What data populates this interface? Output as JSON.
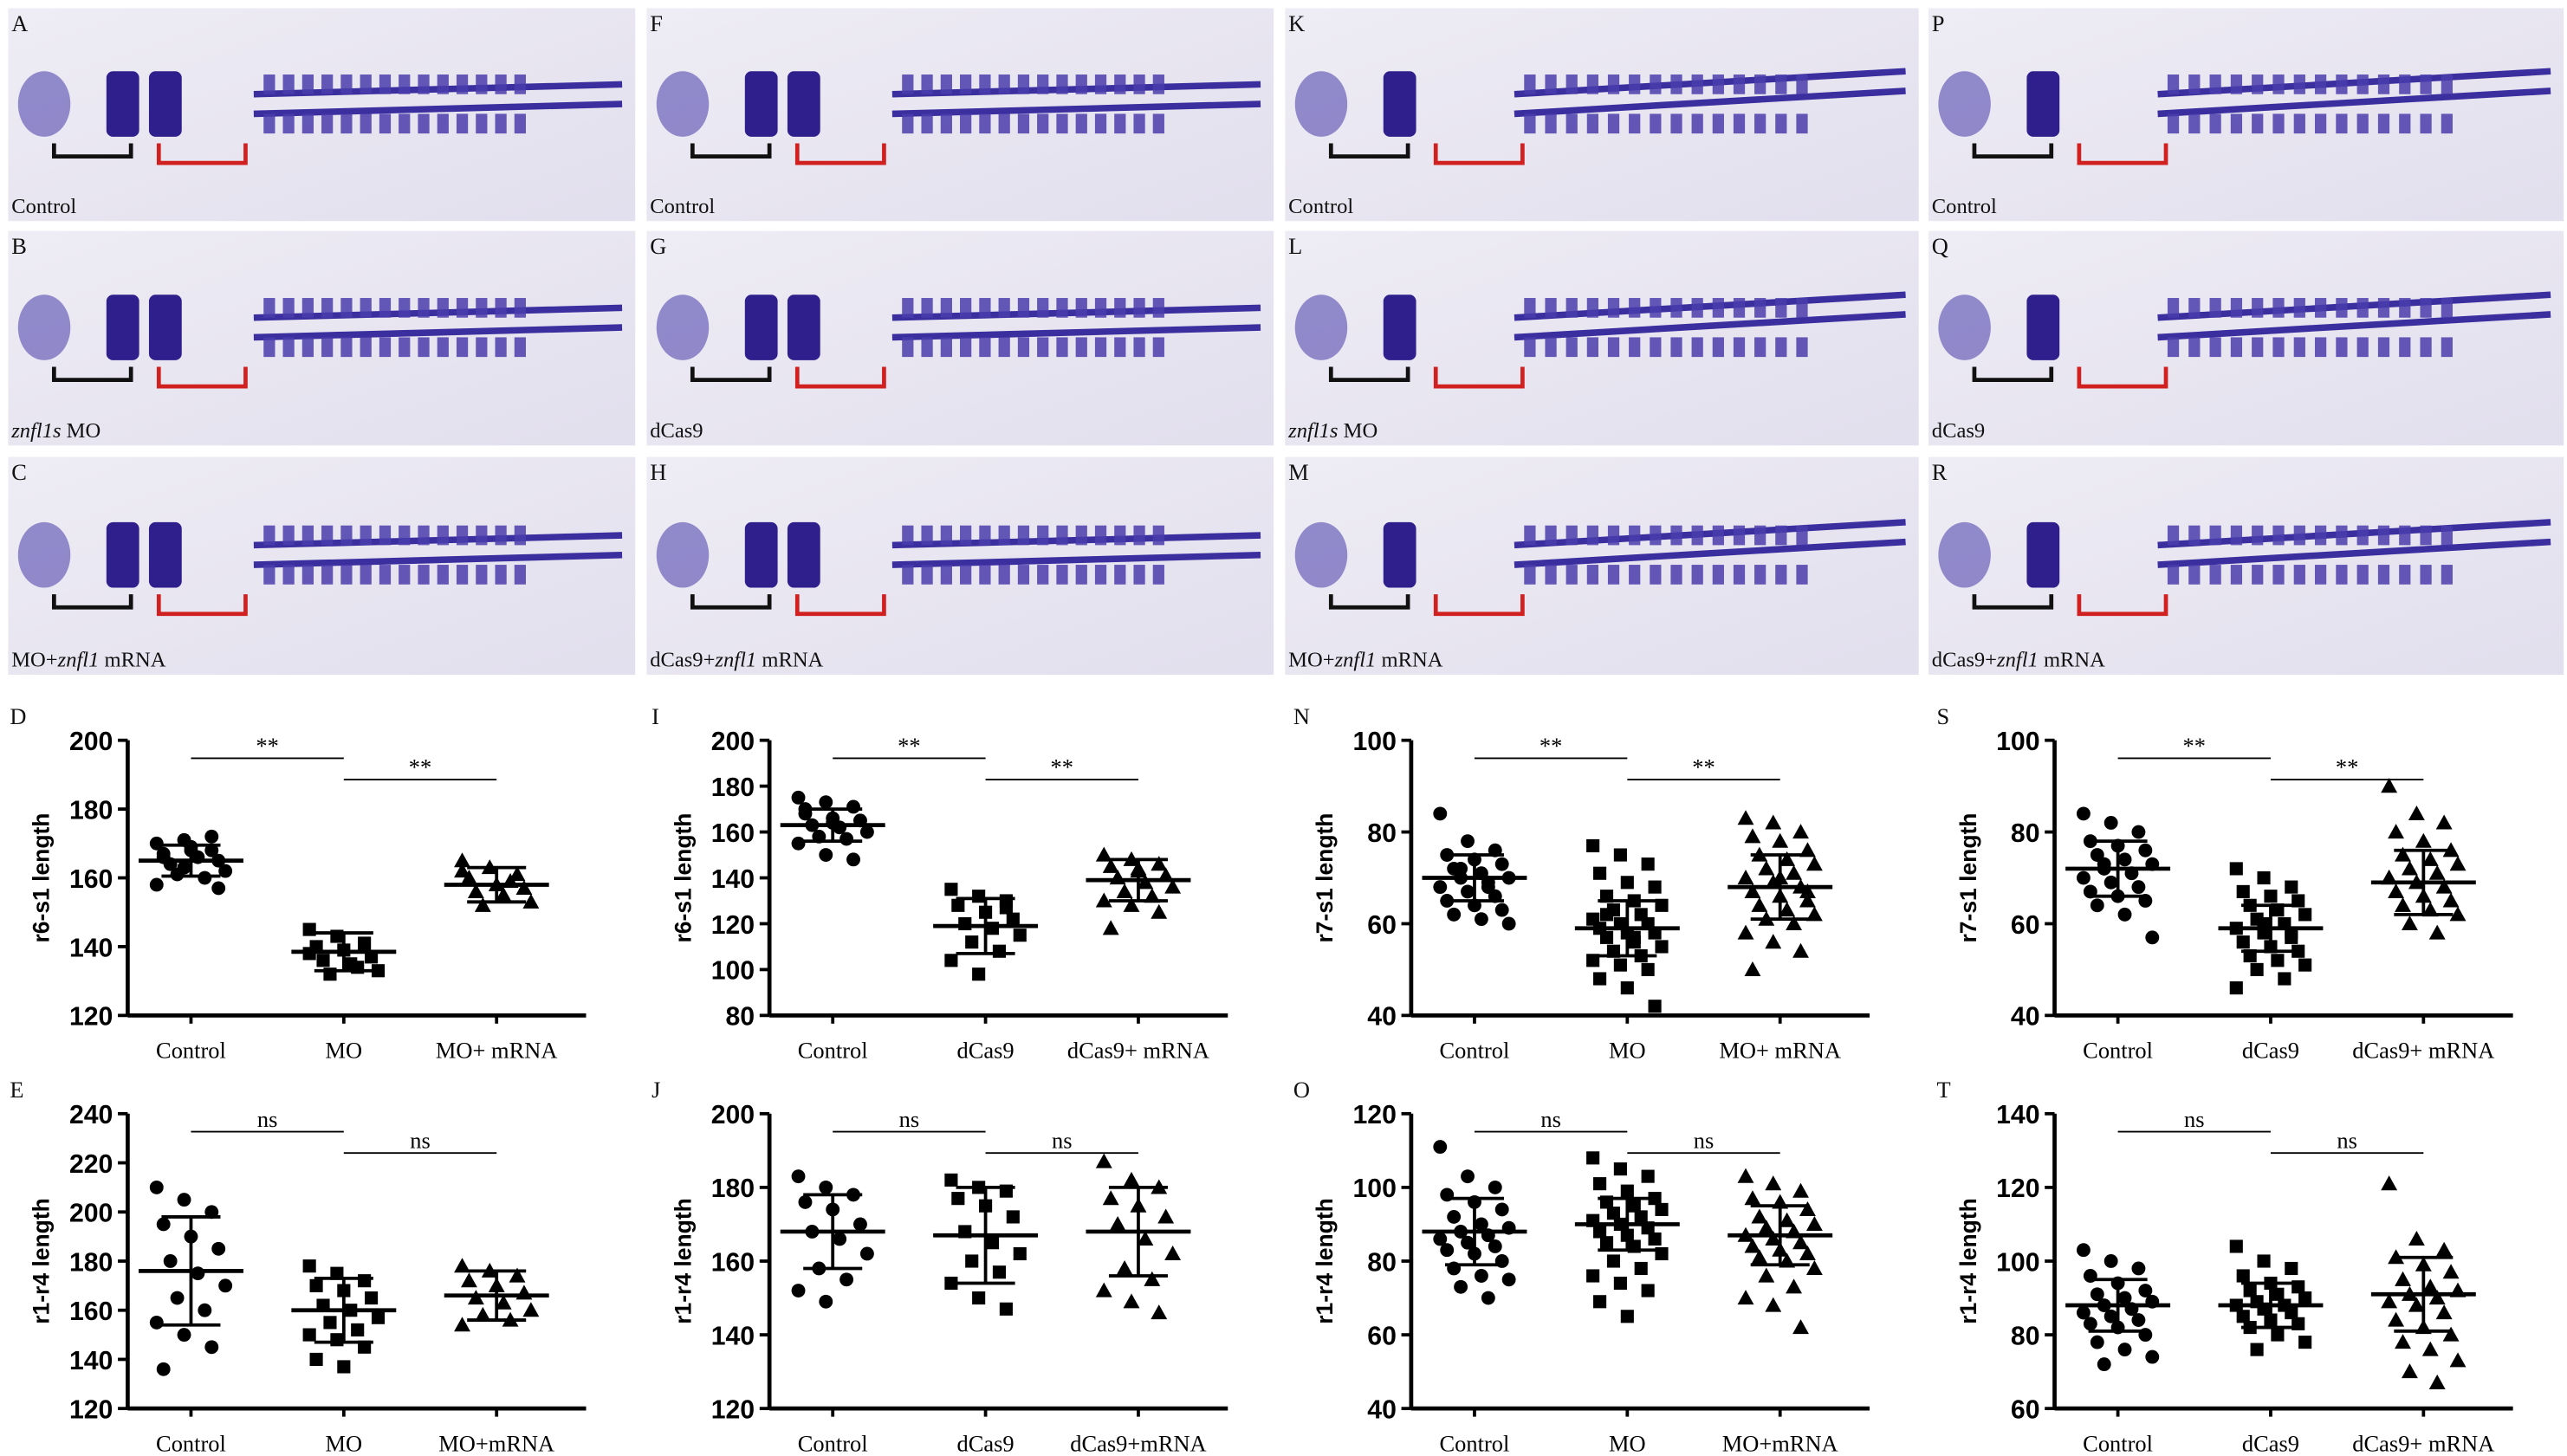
{
  "image_panels": [
    {
      "letter": "A",
      "caption": [
        {
          "text": "Control",
          "italic": false
        }
      ]
    },
    {
      "letter": "B",
      "caption": [
        {
          "text": "znfl1s",
          "italic": true
        },
        {
          "text": " MO",
          "italic": false
        }
      ]
    },
    {
      "letter": "C",
      "caption": [
        {
          "text": "MO+",
          "italic": false
        },
        {
          "text": "znfl1",
          "italic": true
        },
        {
          "text": " mRNA",
          "italic": false
        }
      ]
    },
    {
      "letter": "F",
      "caption": [
        {
          "text": "Control",
          "italic": false
        }
      ]
    },
    {
      "letter": "G",
      "caption": [
        {
          "text": "dCas9",
          "italic": false
        }
      ]
    },
    {
      "letter": "H",
      "caption": [
        {
          "text": "dCas9+",
          "italic": false
        },
        {
          "text": "znfl1",
          "italic": true
        },
        {
          "text": " mRNA",
          "italic": false
        }
      ]
    },
    {
      "letter": "K",
      "caption": [
        {
          "text": "Control",
          "italic": false
        }
      ]
    },
    {
      "letter": "L",
      "caption": [
        {
          "text": "znfl1s",
          "italic": true
        },
        {
          "text": " MO",
          "italic": false
        }
      ]
    },
    {
      "letter": "M",
      "caption": [
        {
          "text": "MO+",
          "italic": false
        },
        {
          "text": "znfl1",
          "italic": true
        },
        {
          "text": " mRNA",
          "italic": false
        }
      ]
    },
    {
      "letter": "P",
      "caption": [
        {
          "text": "Control",
          "italic": false
        }
      ]
    },
    {
      "letter": "Q",
      "caption": [
        {
          "text": "dCas9",
          "italic": false
        }
      ]
    },
    {
      "letter": "R",
      "caption": [
        {
          "text": "dCas9+",
          "italic": false
        },
        {
          "text": "znfl1",
          "italic": true
        },
        {
          "text": " mRNA",
          "italic": false
        }
      ]
    }
  ],
  "chart_data": [
    {
      "type": "dot",
      "letter": "D",
      "y_label": "r6-s1 length",
      "categories": [
        "Control",
        "MO",
        "MO+ mRNA"
      ],
      "markers": [
        "circle",
        "square",
        "triangle"
      ],
      "color": "#000000",
      "ylim": [
        120,
        200
      ],
      "yticks": [
        120,
        140,
        160,
        180,
        200
      ],
      "means": [
        165,
        138.5,
        158
      ],
      "sd": [
        4.5,
        5.5,
        5
      ],
      "significance": [
        "**",
        "**"
      ],
      "points": [
        [
          170,
          171,
          168,
          167,
          169,
          165,
          164,
          166,
          162,
          161,
          160,
          158,
          163,
          172,
          166,
          168,
          157
        ],
        [
          145,
          143,
          141,
          140,
          139,
          137,
          136,
          135,
          133,
          132,
          134,
          138
        ],
        [
          165,
          163,
          161,
          160,
          158,
          157,
          156,
          155,
          153,
          152,
          159,
          162
        ]
      ]
    },
    {
      "type": "dot",
      "letter": "I",
      "y_label": "r6-s1 length",
      "categories": [
        "Control",
        "dCas9",
        "dCas9+ mRNA"
      ],
      "markers": [
        "circle",
        "square",
        "triangle"
      ],
      "color": "#000000",
      "ylim": [
        80,
        200
      ],
      "yticks": [
        80,
        100,
        120,
        140,
        160,
        180,
        200
      ],
      "means": [
        163,
        119,
        139
      ],
      "sd": [
        7,
        12,
        9
      ],
      "significance": [
        "**",
        "**"
      ],
      "points": [
        [
          175,
          173,
          171,
          168,
          166,
          165,
          163,
          162,
          160,
          158,
          157,
          155,
          150,
          148,
          170,
          164
        ],
        [
          135,
          132,
          130,
          128,
          125,
          122,
          120,
          118,
          115,
          112,
          108,
          104,
          98,
          127
        ],
        [
          150,
          148,
          146,
          145,
          143,
          141,
          140,
          138,
          136,
          134,
          132,
          130,
          128,
          125,
          118,
          144
        ]
      ]
    },
    {
      "type": "dot",
      "letter": "N",
      "y_label": "r7-s1 length",
      "categories": [
        "Control",
        "MO",
        "MO+ mRNA"
      ],
      "markers": [
        "circle",
        "square",
        "triangle"
      ],
      "color": "#000000",
      "ylim": [
        40,
        100
      ],
      "yticks": [
        40,
        60,
        80,
        100
      ],
      "means": [
        70,
        59,
        68
      ],
      "sd": [
        5,
        6,
        7
      ],
      "significance": [
        "**",
        "**"
      ],
      "points": [
        [
          84,
          78,
          76,
          75,
          74,
          73,
          72,
          71,
          70,
          70,
          69,
          68,
          67,
          66,
          65,
          64,
          63,
          62,
          61,
          60,
          72,
          68
        ],
        [
          77,
          75,
          73,
          71,
          69,
          68,
          66,
          65,
          64,
          63,
          62,
          61,
          60,
          60,
          59,
          58,
          58,
          57,
          56,
          55,
          54,
          53,
          52,
          51,
          50,
          48,
          46,
          42,
          62,
          57
        ],
        [
          83,
          82,
          80,
          79,
          78,
          76,
          75,
          74,
          73,
          72,
          71,
          70,
          69,
          68,
          67,
          66,
          65,
          64,
          63,
          62,
          61,
          60,
          58,
          56,
          54,
          50,
          70,
          67
        ]
      ]
    },
    {
      "type": "dot",
      "letter": "S",
      "y_label": "r7-s1 length",
      "categories": [
        "Control",
        "dCas9",
        "dCas9+ mRNA"
      ],
      "markers": [
        "circle",
        "square",
        "triangle"
      ],
      "color": "#000000",
      "ylim": [
        40,
        100
      ],
      "yticks": [
        40,
        60,
        80,
        100
      ],
      "means": [
        72,
        59,
        69
      ],
      "sd": [
        6,
        5,
        7
      ],
      "significance": [
        "**",
        "**"
      ],
      "points": [
        [
          84,
          82,
          80,
          78,
          77,
          76,
          75,
          74,
          73,
          72,
          71,
          70,
          69,
          68,
          67,
          66,
          65,
          64,
          62,
          57,
          73
        ],
        [
          72,
          70,
          68,
          67,
          66,
          65,
          64,
          63,
          62,
          61,
          60,
          59,
          58,
          57,
          56,
          55,
          54,
          53,
          52,
          51,
          50,
          48,
          46,
          60,
          58
        ],
        [
          90,
          84,
          82,
          80,
          78,
          76,
          75,
          74,
          73,
          72,
          71,
          70,
          69,
          68,
          67,
          66,
          65,
          64,
          63,
          62,
          60,
          58,
          70
        ]
      ]
    },
    {
      "type": "dot",
      "letter": "E",
      "y_label": "r1-r4 length",
      "categories": [
        "Control",
        "MO",
        "MO+mRNA"
      ],
      "markers": [
        "circle",
        "square",
        "triangle"
      ],
      "color": "#000000",
      "ylim": [
        120,
        240
      ],
      "yticks": [
        120,
        140,
        160,
        180,
        200,
        220,
        240
      ],
      "means": [
        176,
        160,
        166
      ],
      "sd": [
        22,
        13,
        10
      ],
      "significance": [
        "ns",
        "ns"
      ],
      "points": [
        [
          210,
          205,
          200,
          195,
          190,
          185,
          180,
          175,
          170,
          165,
          160,
          155,
          150,
          145,
          136
        ],
        [
          178,
          175,
          172,
          170,
          168,
          165,
          162,
          160,
          157,
          155,
          152,
          150,
          148,
          145,
          140,
          137
        ],
        [
          178,
          176,
          174,
          172,
          170,
          167,
          165,
          163,
          160,
          158,
          156,
          154
        ]
      ]
    },
    {
      "type": "dot",
      "letter": "J",
      "y_label": "r1-r4 length",
      "categories": [
        "Control",
        "dCas9",
        "dCas9+mRNA"
      ],
      "markers": [
        "circle",
        "square",
        "triangle"
      ],
      "color": "#000000",
      "ylim": [
        120,
        200
      ],
      "yticks": [
        120,
        140,
        160,
        180,
        200
      ],
      "means": [
        168,
        167,
        168
      ],
      "sd": [
        10,
        13,
        12
      ],
      "significance": [
        "ns",
        "ns"
      ],
      "points": [
        [
          183,
          180,
          178,
          176,
          174,
          170,
          168,
          166,
          162,
          158,
          155,
          152,
          149
        ],
        [
          182,
          180,
          179,
          177,
          175,
          172,
          168,
          165,
          162,
          160,
          157,
          154,
          150,
          147
        ],
        [
          187,
          182,
          180,
          177,
          175,
          172,
          170,
          166,
          162,
          158,
          155,
          152,
          149,
          146
        ]
      ]
    },
    {
      "type": "dot",
      "letter": "O",
      "y_label": "r1-r4 length",
      "categories": [
        "Control",
        "MO",
        "MO+mRNA"
      ],
      "markers": [
        "circle",
        "square",
        "triangle"
      ],
      "color": "#000000",
      "ylim": [
        40,
        120
      ],
      "yticks": [
        40,
        60,
        80,
        100,
        120
      ],
      "means": [
        88,
        90,
        87
      ],
      "sd": [
        9,
        7,
        8
      ],
      "significance": [
        "ns",
        "ns"
      ],
      "points": [
        [
          111,
          103,
          100,
          98,
          96,
          94,
          92,
          90,
          89,
          88,
          87,
          86,
          85,
          84,
          83,
          82,
          80,
          78,
          76,
          75,
          73,
          70
        ],
        [
          108,
          105,
          103,
          101,
          99,
          97,
          96,
          95,
          94,
          93,
          92,
          91,
          90,
          89,
          88,
          87,
          86,
          85,
          84,
          82,
          80,
          78,
          76,
          74,
          72,
          69,
          65
        ],
        [
          103,
          101,
          99,
          97,
          96,
          94,
          92,
          91,
          90,
          89,
          88,
          87,
          86,
          85,
          84,
          83,
          82,
          81,
          80,
          78,
          76,
          73,
          70,
          68,
          62
        ]
      ]
    },
    {
      "type": "dot",
      "letter": "T",
      "y_label": "r1-r4 length",
      "categories": [
        "Control",
        "dCas9",
        "dCas9+ mRNA"
      ],
      "markers": [
        "circle",
        "square",
        "triangle"
      ],
      "color": "#000000",
      "ylim": [
        60,
        140
      ],
      "yticks": [
        60,
        80,
        100,
        120,
        140
      ],
      "means": [
        88,
        88,
        91
      ],
      "sd": [
        7,
        6,
        10
      ],
      "significance": [
        "ns",
        "ns"
      ],
      "points": [
        [
          103,
          100,
          98,
          96,
          94,
          92,
          91,
          90,
          89,
          88,
          87,
          86,
          85,
          84,
          83,
          82,
          80,
          78,
          76,
          74,
          72
        ],
        [
          104,
          100,
          98,
          96,
          94,
          93,
          92,
          91,
          90,
          89,
          88,
          88,
          87,
          86,
          85,
          84,
          83,
          82,
          80,
          78,
          76
        ],
        [
          121,
          106,
          103,
          101,
          99,
          97,
          95,
          93,
          92,
          91,
          90,
          89,
          88,
          86,
          84,
          82,
          80,
          78,
          76,
          73,
          70,
          67
        ]
      ]
    }
  ]
}
